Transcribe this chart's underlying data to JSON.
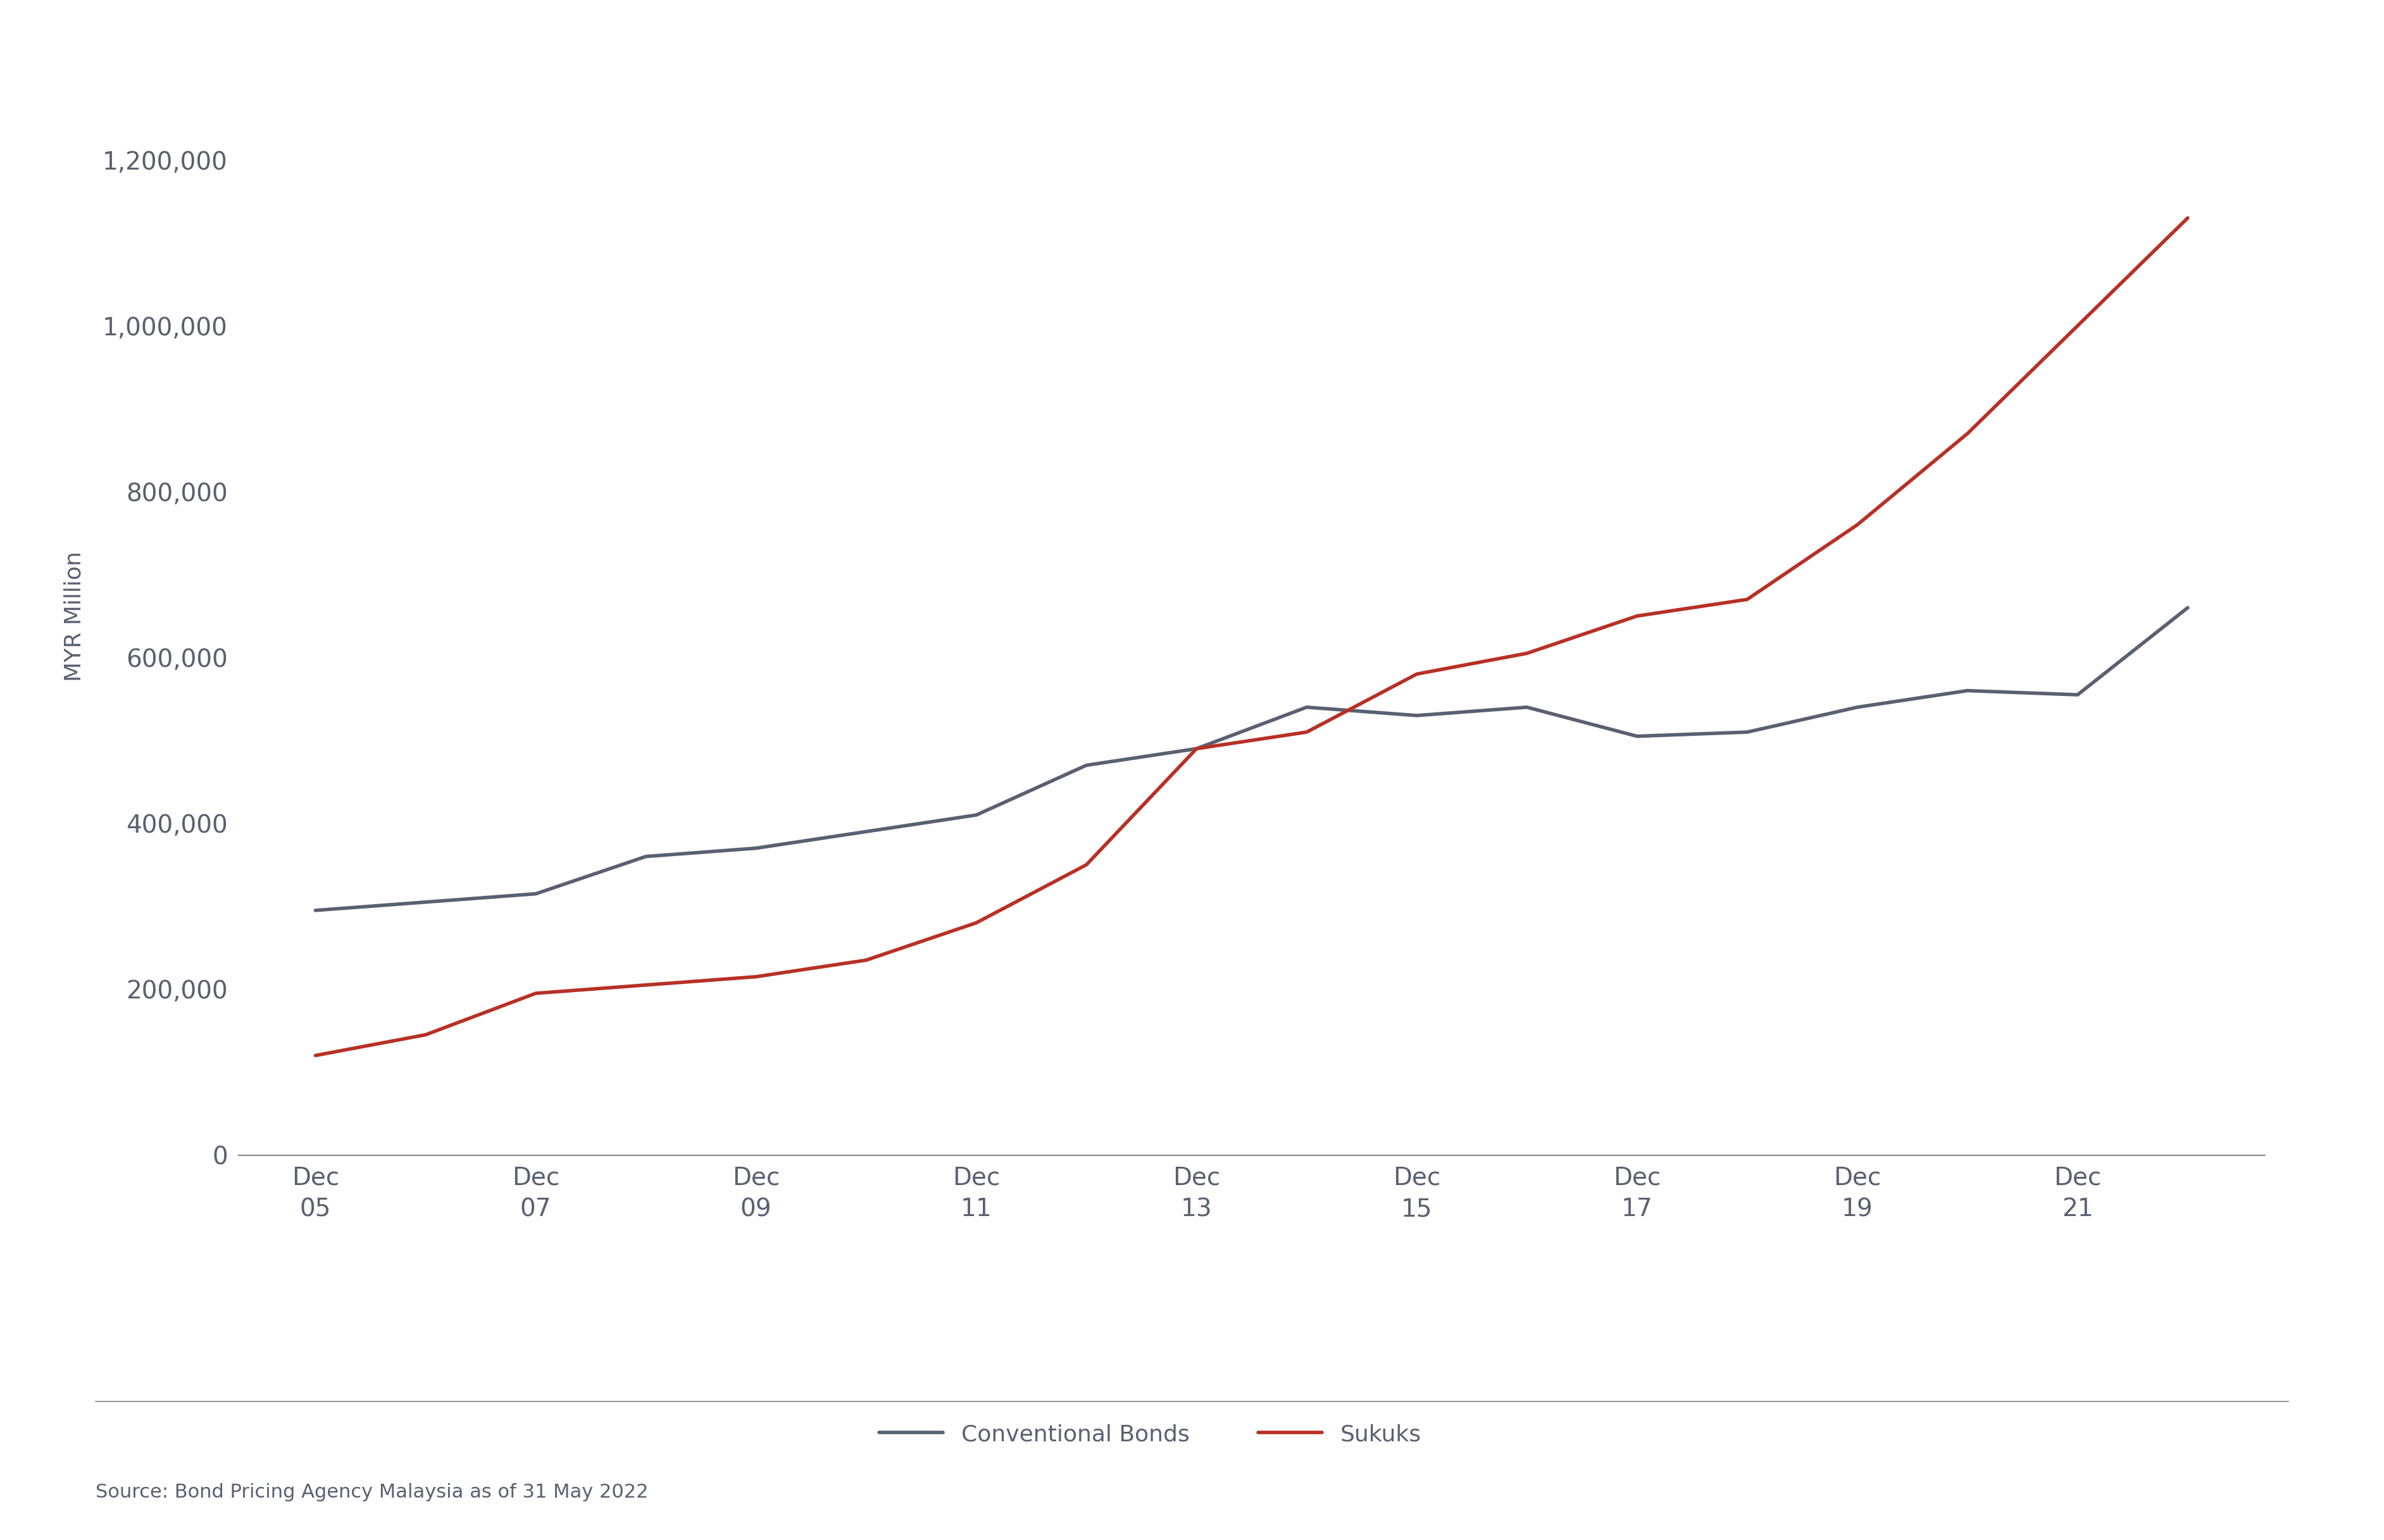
{
  "conventional_bonds": {
    "x": [
      2005,
      2006,
      2007,
      2008,
      2009,
      2010,
      2011,
      2012,
      2013,
      2014,
      2015,
      2016,
      2017,
      2018,
      2019,
      2020,
      2021,
      2022
    ],
    "y": [
      295000,
      305000,
      315000,
      360000,
      370000,
      390000,
      410000,
      470000,
      490000,
      540000,
      530000,
      540000,
      505000,
      510000,
      540000,
      560000,
      555000,
      660000
    ]
  },
  "sukuks": {
    "x": [
      2005,
      2006,
      2007,
      2008,
      2009,
      2010,
      2011,
      2012,
      2013,
      2014,
      2015,
      2016,
      2017,
      2018,
      2019,
      2020,
      2021,
      2022
    ],
    "y": [
      120000,
      145000,
      195000,
      205000,
      215000,
      235000,
      280000,
      350000,
      490000,
      510000,
      580000,
      605000,
      650000,
      670000,
      760000,
      870000,
      1000000,
      1130000
    ]
  },
  "conventional_color": "#596070",
  "sukuk_color": "#b83025",
  "line_width": 4.0,
  "ylabel": "MYR Million",
  "ylim": [
    0,
    1300000
  ],
  "yticks": [
    0,
    200000,
    400000,
    600000,
    800000,
    1000000,
    1200000
  ],
  "xticks": [
    2005,
    2007,
    2009,
    2011,
    2013,
    2015,
    2017,
    2019,
    2021
  ],
  "xtick_labels": [
    "Dec\n05",
    "Dec\n07",
    "Dec\n09",
    "Dec\n11",
    "Dec\n13",
    "Dec\n15",
    "Dec\n17",
    "Dec\n19",
    "Dec\n21"
  ],
  "legend_conventional": "Conventional Bonds",
  "legend_sukuk": "Sukuks",
  "source_text": "Source: Bond Pricing Agency Malaysia as of 31 May 2022",
  "background_color": "#ffffff",
  "text_color": "#596070",
  "spine_color": "#888888",
  "font_size_ticks": 28,
  "font_size_legend": 26,
  "font_size_source": 22,
  "font_size_ylabel": 26
}
